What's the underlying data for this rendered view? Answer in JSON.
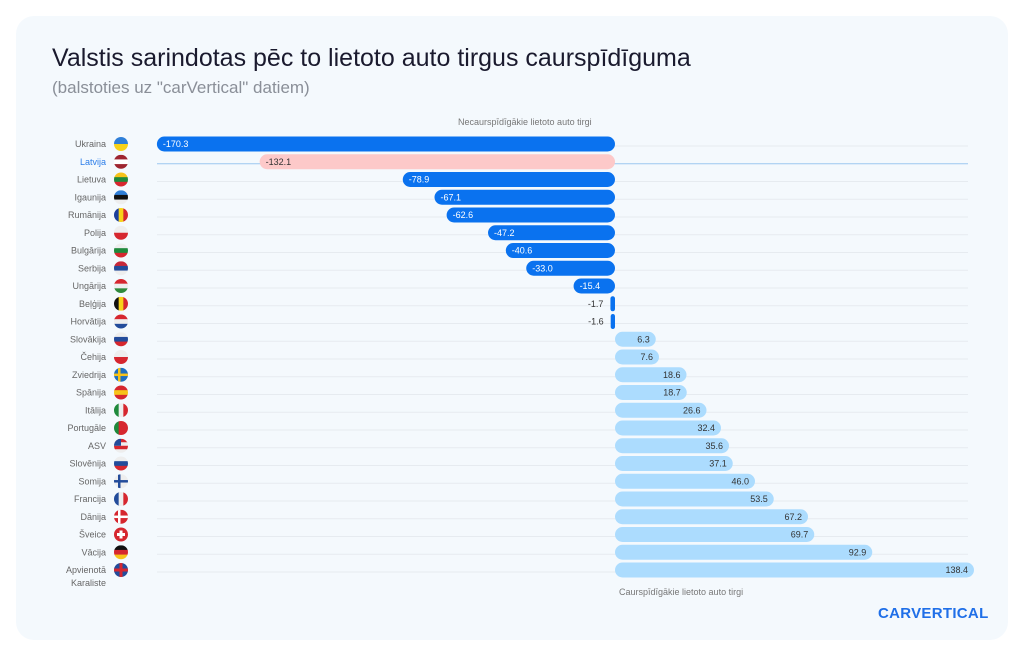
{
  "title": "Valstis sarindotas pēc to lietoto auto tirgus caurspīdīguma",
  "subtitle": "(balstoties uz \"carVertical\" datiem)",
  "logo": "CARVERTICAL",
  "chart_data": {
    "type": "bar",
    "orientation": "horizontal",
    "title": "Valstis sarindotas pēc to lietoto auto tirgus caurspīdīguma",
    "subtitle": "(balstoties uz \"carVertical\" datiem)",
    "annotations": {
      "negative": "Necaurspīdīgākie lietoto auto tirgi",
      "positive": "Caurspīdīgākie lietoto auto tirgi"
    },
    "highlight": "Latvija",
    "colors": {
      "negative": "#0a72ef",
      "positive": "#acdcfe",
      "highlight": "#fdc9c9",
      "highlight_label": "#2b7de9"
    },
    "grid": true,
    "categories": [
      "Ukraina",
      "Latvija",
      "Lietuva",
      "Igaunija",
      "Rumānija",
      "Polija",
      "Bulgārija",
      "Serbija",
      "Ungārija",
      "Beļģija",
      "Horvātija",
      "Slovākija",
      "Čehija",
      "Zviedrija",
      "Spānija",
      "Itālija",
      "Portugāle",
      "ASV",
      "Slovēnija",
      "Somija",
      "Francija",
      "Dānija",
      "Šveice",
      "Vācija",
      "Apvienotā Karaliste"
    ],
    "values": [
      -170.3,
      -132.1,
      -78.9,
      -67.1,
      -62.6,
      -47.2,
      -40.6,
      -33.0,
      -15.4,
      -1.7,
      -1.6,
      6.3,
      7.6,
      18.6,
      18.7,
      26.6,
      32.4,
      35.6,
      37.1,
      46.0,
      53.5,
      67.2,
      69.7,
      92.9,
      138.4
    ],
    "labels": [
      "-170.3",
      "-132.1",
      "-78.9",
      "-67.1",
      "-62.6",
      "-47.2",
      "-40.6",
      "-33.0",
      "-15.4",
      "-1.7",
      "-1.6",
      "6.3",
      "7.6",
      "18.6",
      "18.7",
      "26.6",
      "32.4",
      "35.6",
      "37.1",
      "46.0",
      "53.5",
      "67.2",
      "69.7",
      "92.9",
      "138.4"
    ],
    "flags": [
      "ua-flag",
      "lv-flag",
      "lt-flag",
      "ee-flag",
      "ro-flag",
      "pl-flag",
      "bg-flag",
      "rs-flag",
      "hu-flag",
      "be-flag",
      "hr-flag",
      "sk-flag",
      "cz-flag",
      "se-flag",
      "es-flag",
      "it-flag",
      "pt-flag",
      "us-flag",
      "si-flag",
      "fi-flag",
      "fr-flag",
      "dk-flag",
      "ch-flag",
      "de-flag",
      "gb-flag"
    ]
  }
}
